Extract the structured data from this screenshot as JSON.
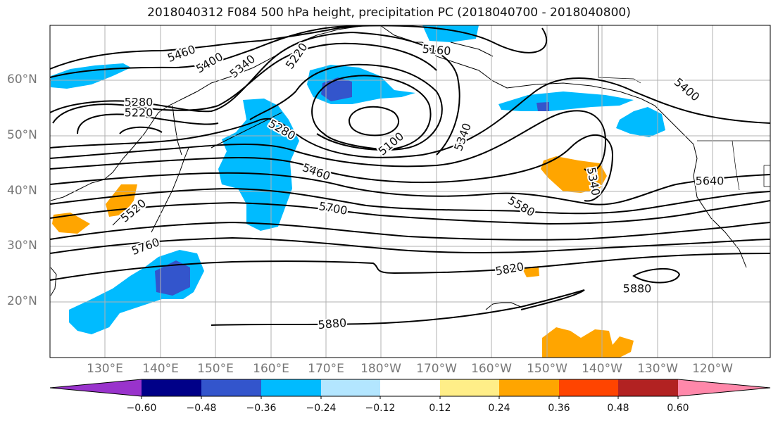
{
  "title": "2018040312 F084 500 hPa height, precipitation PC (2018040700 - 2018040800)",
  "lat_labels": [
    "60°N",
    "50°N",
    "40°N",
    "30°N",
    "20°N"
  ],
  "lon_labels": [
    "130°E",
    "140°E",
    "150°E",
    "160°E",
    "170°E",
    "180°W",
    "170°W",
    "160°W",
    "150°W",
    "140°W",
    "130°W",
    "120°W"
  ],
  "colorbar": {
    "ticks": [
      "−0.60",
      "−0.48",
      "−0.36",
      "−0.24",
      "−0.12",
      "0.12",
      "0.24",
      "0.36",
      "0.48",
      "0.60"
    ],
    "colors": [
      "#9933cc",
      "#000088",
      "#3355cc",
      "#00bbff",
      "#b3e6ff",
      "#ffffff",
      "#ffee88",
      "#ffa500",
      "#ff4400",
      "#b22222",
      "#ff88aa"
    ]
  },
  "contour_labels": [
    "5460",
    "5400",
    "5340",
    "5220",
    "5160",
    "5280",
    "5220",
    "5280",
    "5100",
    "5340",
    "5460",
    "5400",
    "5700",
    "5580",
    "5340",
    "5640",
    "5520",
    "5760",
    "5820",
    "5880",
    "5880"
  ],
  "colors": {
    "land_line": "#000000",
    "contour": "#000000",
    "grid": "#b0b0b0"
  }
}
